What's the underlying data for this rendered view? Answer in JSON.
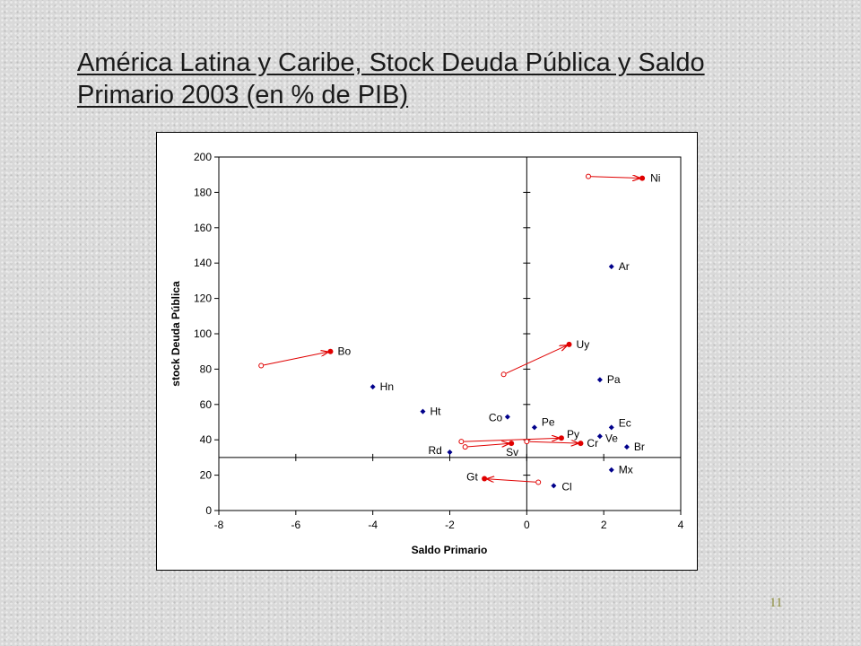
{
  "slide": {
    "title": "América Latina y Caribe, Stock Deuda Pública y Saldo Primario 2003 (en % de PIB)",
    "page_number": "11"
  },
  "colors": {
    "marker_blue": "#00008b",
    "marker_red": "#e00000",
    "arrow_red": "#e00000",
    "axis": "#000000"
  },
  "chart_data": {
    "type": "scatter",
    "title": "",
    "xlabel": "Saldo Primario",
    "ylabel": "stock Deuda Pública",
    "xlim": [
      -8,
      4
    ],
    "ylim": [
      0,
      200
    ],
    "x_ticks": [
      -8,
      -6,
      -4,
      -2,
      0,
      2,
      4
    ],
    "y_ticks": [
      0,
      20,
      40,
      60,
      80,
      100,
      120,
      140,
      160,
      180,
      200
    ],
    "grid": false,
    "points": [
      {
        "label": "Ni",
        "x": 3.0,
        "y": 188,
        "color": "red",
        "from": {
          "x": 1.6,
          "y": 189
        }
      },
      {
        "label": "Ar",
        "x": 2.2,
        "y": 138,
        "color": "blue"
      },
      {
        "label": "Uy",
        "x": 1.1,
        "y": 94,
        "color": "red",
        "from": {
          "x": -0.6,
          "y": 77
        }
      },
      {
        "label": "Bo",
        "x": -5.1,
        "y": 90,
        "color": "red",
        "from": {
          "x": -6.9,
          "y": 82
        }
      },
      {
        "label": "Pa",
        "x": 1.9,
        "y": 74,
        "color": "blue"
      },
      {
        "label": "Hn",
        "x": -4.0,
        "y": 70,
        "color": "blue"
      },
      {
        "label": "Ht",
        "x": -2.7,
        "y": 56,
        "color": "blue"
      },
      {
        "label": "Co",
        "x": -0.5,
        "y": 53,
        "color": "blue"
      },
      {
        "label": "Pe",
        "x": 0.2,
        "y": 47,
        "color": "blue"
      },
      {
        "label": "Ec",
        "x": 2.2,
        "y": 47,
        "color": "blue"
      },
      {
        "label": "Py",
        "x": 0.9,
        "y": 41,
        "color": "red",
        "from": {
          "x": -1.7,
          "y": 39
        }
      },
      {
        "label": "Ve",
        "x": 1.9,
        "y": 42,
        "color": "blue"
      },
      {
        "label": "Cr",
        "x": 1.4,
        "y": 38,
        "color": "red",
        "from": {
          "x": 0.0,
          "y": 39
        }
      },
      {
        "label": "Sv",
        "x": -0.4,
        "y": 38,
        "color": "red",
        "from": {
          "x": -1.6,
          "y": 36
        }
      },
      {
        "label": "Br",
        "x": 2.6,
        "y": 36,
        "color": "blue"
      },
      {
        "label": "Rd",
        "x": -2.0,
        "y": 33,
        "color": "blue"
      },
      {
        "label": "Mx",
        "x": 2.2,
        "y": 23,
        "color": "blue"
      },
      {
        "label": "Gt",
        "x": -1.1,
        "y": 18,
        "color": "red",
        "from": {
          "x": 0.3,
          "y": 16
        }
      },
      {
        "label": "Cl",
        "x": 0.7,
        "y": 14,
        "color": "blue"
      }
    ],
    "reference_lines": {
      "x": 0,
      "y": 30
    }
  }
}
